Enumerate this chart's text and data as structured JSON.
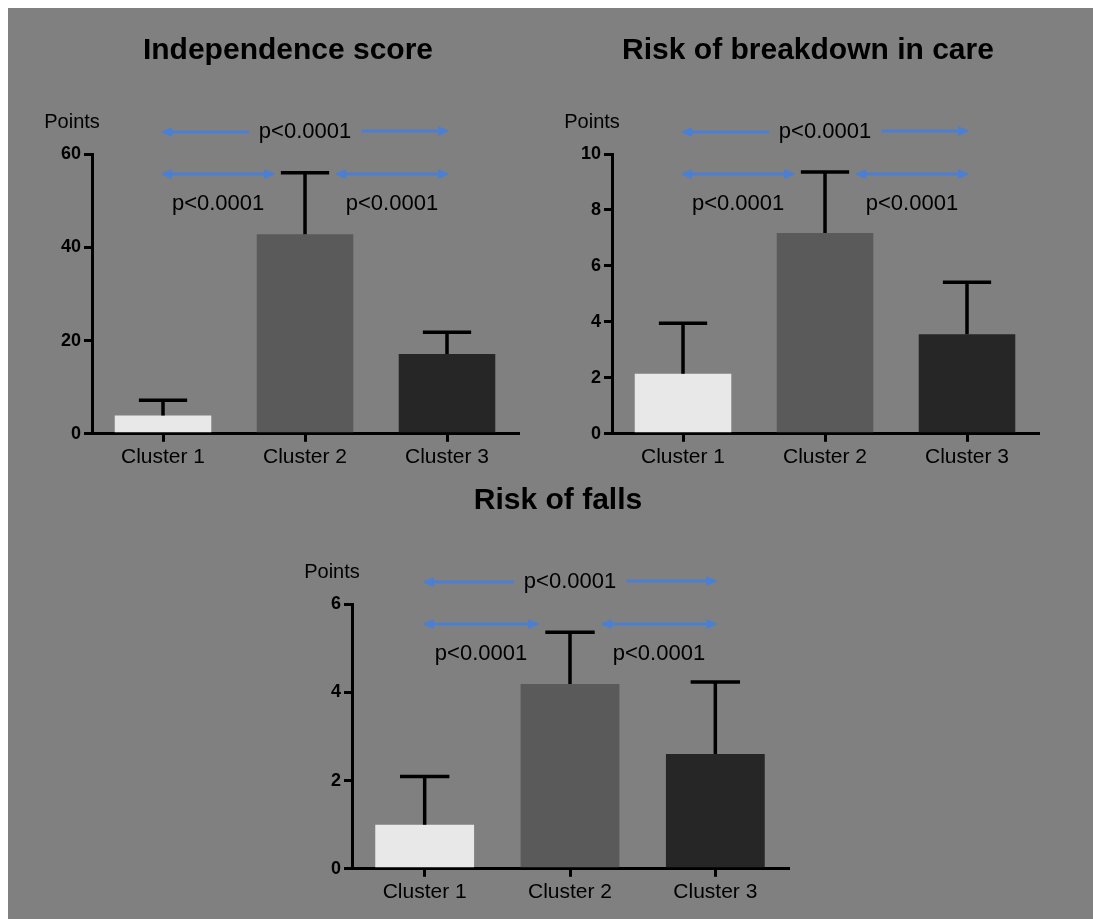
{
  "chart_data": [
    {
      "type": "bar",
      "title": "Independence score",
      "ylabel": "Points",
      "categories": [
        "Cluster 1",
        "Cluster 2",
        "Cluster 3"
      ],
      "values": [
        3.9,
        42.8,
        17.1
      ],
      "colors": [
        "#e8e8e8",
        "#5a5a5a",
        "#262626"
      ],
      "errors": [
        [
          3.9,
          7.2
        ],
        [
          42.8,
          56
        ],
        [
          17.1,
          21.8
        ]
      ],
      "ylim": [
        0,
        60
      ],
      "yticks": [
        0,
        20,
        40,
        60
      ],
      "annotations": [
        "p<0.0001",
        "p<0.0001",
        "p<0.0001"
      ]
    },
    {
      "type": "bar",
      "title": "Risk of breakdown in care",
      "ylabel": "Points",
      "categories": [
        "Cluster 1",
        "Cluster 2",
        "Cluster 3"
      ],
      "values": [
        2.15,
        7.18,
        3.56
      ],
      "colors": [
        "#e8e8e8",
        "#5a5a5a",
        "#262626"
      ],
      "errors": [
        [
          2.15,
          3.95
        ],
        [
          7.18,
          9.36
        ],
        [
          3.56,
          5.42
        ]
      ],
      "ylim": [
        0,
        10
      ],
      "yticks": [
        0,
        2,
        4,
        6,
        8,
        10
      ],
      "annotations": [
        "p<0.0001",
        "p<0.0001",
        "p<0.0001"
      ]
    },
    {
      "type": "bar",
      "title": "Risk of falls",
      "ylabel": "Points",
      "categories": [
        "Cluster 1",
        "Cluster 2",
        "Cluster 3"
      ],
      "values": [
        1.0,
        4.19,
        2.6
      ],
      "colors": [
        "#e8e8e8",
        "#5a5a5a",
        "#262626"
      ],
      "errors": [
        [
          1.0,
          2.09
        ],
        [
          4.19,
          5.36
        ],
        [
          2.6,
          4.23
        ]
      ],
      "ylim": [
        0,
        6
      ],
      "yticks": [
        0,
        2,
        4,
        6
      ],
      "annotations": [
        "p<0.0001",
        "p<0.0001",
        "p<0.0001"
      ]
    }
  ]
}
